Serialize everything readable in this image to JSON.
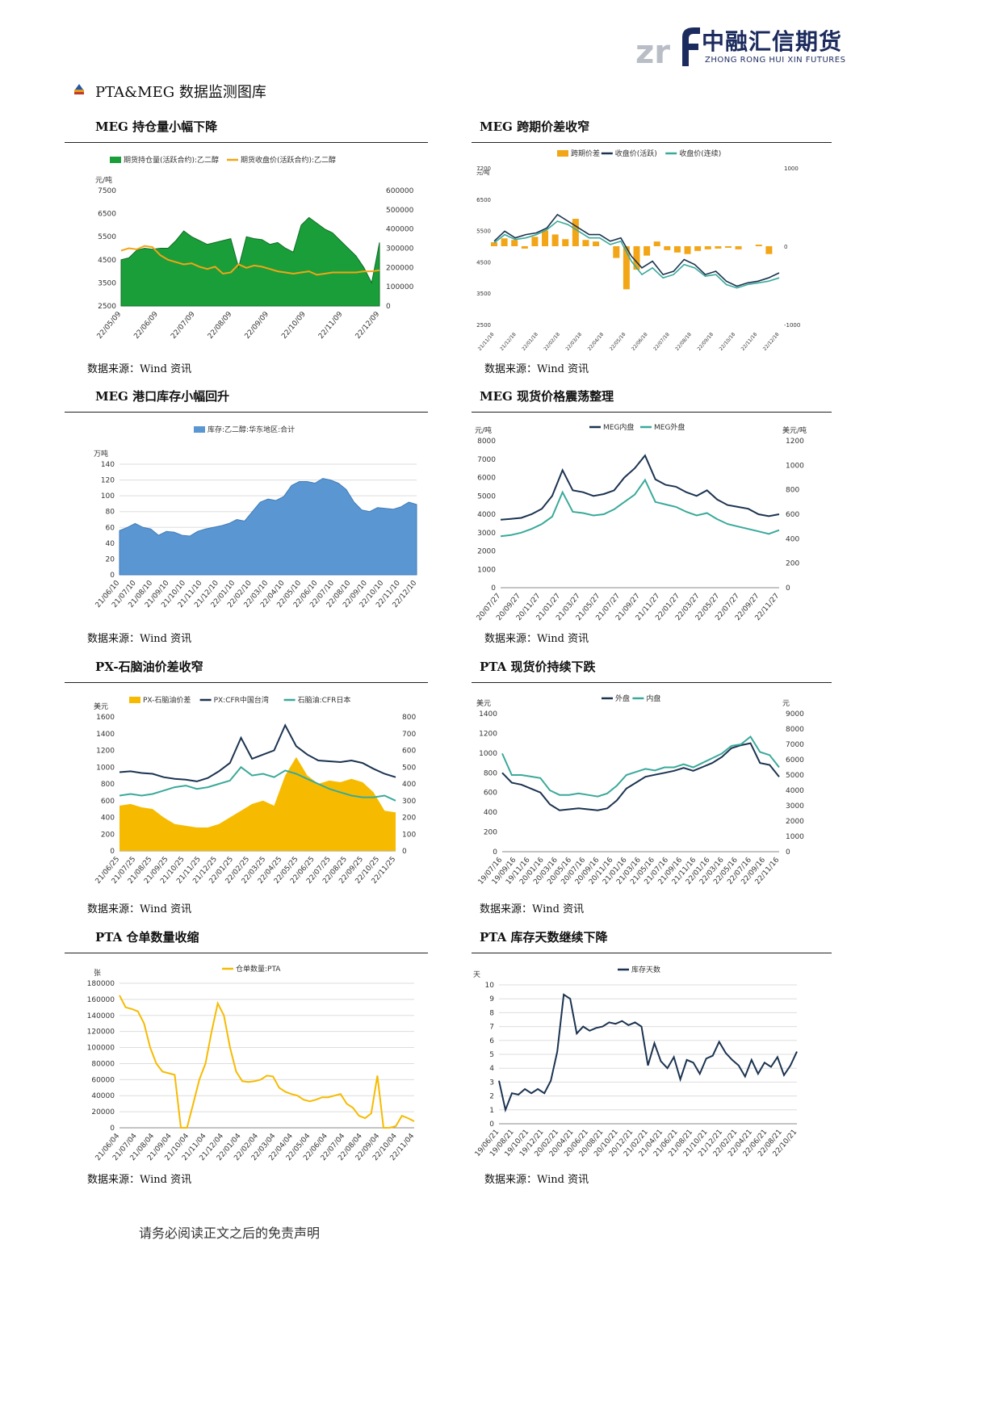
{
  "header": {
    "logo_cn": "中融汇信期货",
    "logo_en": "ZHONG RONG HUI XIN FUTURES",
    "section_title": "PTA&MEG 数据监测图库"
  },
  "charts": [
    {
      "title": "MEG 持仓量小幅下降",
      "source": "数据来源：Wind 资讯"
    },
    {
      "title": "MEG 跨期价差收窄",
      "source": "数据来源：Wind 资讯"
    },
    {
      "title": "MEG 港口库存小幅回升",
      "source": "数据来源：Wind 资讯"
    },
    {
      "title": "MEG 现货价格震荡整理",
      "source": "数据来源：Wind 资讯"
    },
    {
      "title": "PX-石脑油价差收窄",
      "source": "数据来源：Wind 资讯"
    },
    {
      "title": "PTA 现货价持续下跌",
      "source": "数据来源：Wind 资讯"
    },
    {
      "title": "PTA 仓单数量收缩",
      "source": "数据来源：Wind 资讯"
    },
    {
      "title": "PTA 库存天数继续下降",
      "source": "数据来源：Wind 资讯"
    }
  ],
  "footer": {
    "text": "请务必阅读正文之后的免责声明"
  },
  "colors": {
    "green": "#1a9e3a",
    "orange": "#f2a516",
    "navy": "#1b3350",
    "teal": "#3aa99a",
    "blue": "#5a97d2",
    "gold": "#f6bb00"
  },
  "chart_data": [
    {
      "type": "area",
      "legend": [
        "期货持仓量(活跃合约):乙二醇",
        "期货收盘价(活跃合约):乙二醇"
      ],
      "ylabel": "元/吨",
      "y_ticks": [
        "7500",
        "6500",
        "5500",
        "4500",
        "3500",
        "2500"
      ],
      "y2_ticks": [
        "600000",
        "500000",
        "400000",
        "300000",
        "200000",
        "100000",
        "0"
      ],
      "ylim": [
        2500,
        7500
      ],
      "y2lim": [
        0,
        600000
      ],
      "x_ticks": [
        "22/05/09",
        "22/06/09",
        "22/07/09",
        "22/08/09",
        "22/09/09",
        "22/10/09",
        "22/11/09",
        "22/12/09"
      ],
      "series": [
        {
          "name": "期货持仓量(活跃合约):乙二醇",
          "axis": "right",
          "values": [
            240000,
            250000,
            290000,
            300000,
            295000,
            300000,
            300000,
            340000,
            390000,
            360000,
            340000,
            320000,
            330000,
            340000,
            350000,
            200000,
            360000,
            350000,
            345000,
            320000,
            330000,
            300000,
            280000,
            420000,
            460000,
            430000,
            400000,
            380000,
            340000,
            300000,
            260000,
            200000,
            120000,
            330000
          ]
        },
        {
          "name": "期货收盘价(活跃合约):乙二醇",
          "axis": "left",
          "values": [
            4900,
            5000,
            4950,
            5100,
            5050,
            4700,
            4500,
            4400,
            4300,
            4350,
            4200,
            4100,
            4200,
            3900,
            3950,
            4300,
            4150,
            4250,
            4200,
            4100,
            4000,
            3950,
            3900,
            3950,
            4000,
            3850,
            3900,
            3950,
            3950,
            3950,
            3950,
            4000,
            4000,
            4050
          ]
        }
      ]
    },
    {
      "type": "line",
      "legend": [
        "跨期价差",
        "收盘价(活跃)",
        "收盘价(连续)"
      ],
      "ylabel": "元/吨",
      "y_ticks": [
        "7200",
        "6500",
        "5500",
        "4500",
        "3500",
        "2500"
      ],
      "y2_ticks": [
        "1000",
        "0",
        "-1000"
      ],
      "x_ticks": [
        "21/11/18",
        "21/12/18",
        "22/01/18",
        "22/02/18",
        "22/03/18",
        "22/04/18",
        "22/05/18",
        "22/06/18",
        "22/07/18",
        "22/08/18",
        "22/09/18",
        "22/10/18",
        "22/11/18",
        "22/12/18"
      ],
      "series": [
        {
          "name": "跨期价差",
          "axis": "right",
          "values": [
            50,
            100,
            80,
            -30,
            120,
            200,
            150,
            90,
            350,
            80,
            60,
            0,
            -150,
            -550,
            -300,
            -120,
            60,
            -50,
            -80,
            -100,
            -60,
            -40,
            -30,
            -20,
            -40,
            0,
            20,
            -100,
            0
          ]
        },
        {
          "name": "收盘价(活跃)",
          "axis": "left",
          "values": [
            5000,
            5300,
            5100,
            5200,
            5250,
            5400,
            5800,
            5600,
            5400,
            5200,
            5200,
            5000,
            5100,
            4550,
            4200,
            4400,
            4000,
            4100,
            4450,
            4300,
            4000,
            4100,
            3800,
            3650,
            3750,
            3800,
            3900,
            4050
          ]
        },
        {
          "name": "收盘价(连续)",
          "axis": "left",
          "values": [
            4950,
            5200,
            5050,
            5100,
            5200,
            5350,
            5600,
            5500,
            5300,
            5100,
            5100,
            4900,
            5000,
            4400,
            4000,
            4200,
            3900,
            4000,
            4300,
            4200,
            3950,
            4000,
            3700,
            3600,
            3700,
            3750,
            3800,
            3900
          ]
        }
      ]
    },
    {
      "type": "area",
      "legend": [
        "库存:乙二醇:华东地区:合计"
      ],
      "ylabel": "万吨",
      "y_ticks": [
        "140",
        "120",
        "100",
        "80",
        "60",
        "40",
        "20",
        "0"
      ],
      "ylim": [
        0,
        140
      ],
      "x_ticks": [
        "21/06/10",
        "21/07/10",
        "21/08/10",
        "21/09/10",
        "21/10/10",
        "21/11/10",
        "21/12/10",
        "22/01/10",
        "22/02/10",
        "22/03/10",
        "22/04/10",
        "22/05/10",
        "22/06/10",
        "22/07/10",
        "22/08/10",
        "22/09/10",
        "22/10/10",
        "22/11/10",
        "22/12/10"
      ],
      "series": [
        {
          "name": "库存:乙二醇:华东地区:合计",
          "values": [
            56,
            60,
            65,
            60,
            58,
            50,
            55,
            54,
            50,
            49,
            55,
            58,
            60,
            62,
            65,
            70,
            68,
            80,
            92,
            96,
            94,
            99,
            113,
            118,
            118,
            116,
            122,
            120,
            116,
            108,
            92,
            82,
            80,
            85,
            84,
            83,
            86,
            92,
            89
          ]
        }
      ]
    },
    {
      "type": "line",
      "legend": [
        "MEG内盘",
        "MEG外盘"
      ],
      "ylabel": "元/吨",
      "y2label": "美元/吨",
      "y_ticks": [
        "8000",
        "7000",
        "6000",
        "5000",
        "4000",
        "3000",
        "2000",
        "1000",
        "0"
      ],
      "y2_ticks": [
        "1200",
        "1000",
        "800",
        "600",
        "400",
        "200",
        "0"
      ],
      "x_ticks": [
        "20/07/27",
        "20/09/27",
        "20/11/27",
        "21/01/27",
        "21/03/27",
        "21/05/27",
        "21/07/27",
        "21/09/27",
        "21/11/27",
        "22/01/27",
        "22/03/27",
        "22/05/27",
        "22/07/27",
        "22/09/27",
        "22/11/27"
      ],
      "series": [
        {
          "name": "MEG内盘",
          "axis": "left",
          "values": [
            3700,
            3750,
            3800,
            4000,
            4300,
            5000,
            6400,
            5300,
            5200,
            5000,
            5100,
            5300,
            6000,
            6500,
            7200,
            5900,
            5600,
            5500,
            5200,
            5000,
            5300,
            4800,
            4500,
            4400,
            4300,
            4000,
            3900,
            4000
          ]
        },
        {
          "name": "MEG外盘",
          "axis": "right",
          "values": [
            420,
            430,
            450,
            480,
            520,
            580,
            780,
            620,
            610,
            590,
            600,
            640,
            700,
            760,
            880,
            700,
            680,
            660,
            620,
            590,
            610,
            560,
            520,
            500,
            480,
            460,
            440,
            470
          ]
        }
      ]
    },
    {
      "type": "bar",
      "legend": [
        "PX-石脑油价差",
        "PX:CFR中国台湾",
        "石脑油:CFR日本"
      ],
      "ylabel": "美元",
      "y_ticks": [
        "1600",
        "1400",
        "1200",
        "1000",
        "800",
        "600",
        "400",
        "200",
        "0"
      ],
      "y2_ticks": [
        "800",
        "700",
        "600",
        "500",
        "400",
        "300",
        "200",
        "100",
        "0"
      ],
      "x_ticks": [
        "21/06/25",
        "21/07/25",
        "21/08/25",
        "21/09/25",
        "21/10/25",
        "21/11/25",
        "21/12/25",
        "22/01/25",
        "22/02/25",
        "22/03/25",
        "22/04/25",
        "22/05/25",
        "22/06/25",
        "22/07/25",
        "22/08/25",
        "22/09/25",
        "22/10/25",
        "22/11/25"
      ],
      "series": [
        {
          "name": "PX-石脑油价差",
          "axis": "right",
          "values": [
            270,
            280,
            260,
            250,
            200,
            160,
            150,
            140,
            140,
            160,
            200,
            240,
            280,
            300,
            270,
            450,
            560,
            450,
            400,
            420,
            410,
            430,
            410,
            350,
            240,
            230
          ]
        },
        {
          "name": "PX:CFR中国台湾",
          "axis": "left",
          "values": [
            940,
            950,
            930,
            920,
            880,
            860,
            850,
            830,
            870,
            950,
            1050,
            1350,
            1100,
            1150,
            1200,
            1500,
            1250,
            1150,
            1080,
            1070,
            1060,
            1080,
            1050,
            980,
            920,
            880
          ]
        },
        {
          "name": "石脑油:CFR日本",
          "axis": "right",
          "values": [
            330,
            340,
            330,
            340,
            360,
            380,
            390,
            370,
            380,
            400,
            420,
            500,
            450,
            460,
            440,
            480,
            460,
            430,
            400,
            370,
            350,
            330,
            320,
            320,
            330,
            300
          ]
        }
      ]
    },
    {
      "type": "line",
      "legend": [
        "外盘",
        "内盘"
      ],
      "ylabel": "美元",
      "y2label": "元",
      "y_ticks": [
        "1400",
        "1200",
        "1000",
        "800",
        "600",
        "400",
        "200",
        "0"
      ],
      "y2_ticks": [
        "9000",
        "8000",
        "7000",
        "6000",
        "5000",
        "4000",
        "3000",
        "2000",
        "1000",
        "0"
      ],
      "x_ticks": [
        "19/07/16",
        "19/09/16",
        "19/11/16",
        "20/01/16",
        "20/03/16",
        "20/05/16",
        "20/07/16",
        "20/09/16",
        "20/11/16",
        "21/01/16",
        "21/03/16",
        "21/05/16",
        "21/07/16",
        "21/09/16",
        "21/11/16",
        "22/01/16",
        "22/03/16",
        "22/05/16",
        "22/07/16",
        "22/09/16",
        "22/11/16"
      ],
      "series": [
        {
          "name": "外盘",
          "axis": "left",
          "values": [
            800,
            700,
            680,
            640,
            600,
            480,
            420,
            430,
            440,
            430,
            420,
            440,
            520,
            640,
            700,
            760,
            780,
            800,
            820,
            850,
            820,
            860,
            900,
            960,
            1050,
            1080,
            1100,
            900,
            880,
            760
          ]
        },
        {
          "name": "内盘",
          "axis": "right",
          "values": [
            6400,
            5000,
            5000,
            4900,
            4800,
            4000,
            3700,
            3700,
            3800,
            3700,
            3600,
            3800,
            4300,
            5000,
            5200,
            5400,
            5300,
            5500,
            5500,
            5700,
            5500,
            5800,
            6100,
            6400,
            6900,
            7000,
            7500,
            6500,
            6300,
            5500
          ]
        }
      ]
    },
    {
      "type": "line",
      "legend": [
        "仓单数量:PTA"
      ],
      "ylabel": "张",
      "y_ticks": [
        "180000",
        "160000",
        "140000",
        "120000",
        "100000",
        "80000",
        "60000",
        "40000",
        "20000",
        "0"
      ],
      "ylim": [
        0,
        180000
      ],
      "x_ticks": [
        "21/06/04",
        "21/07/04",
        "21/08/04",
        "21/09/04",
        "21/10/04",
        "21/11/04",
        "21/12/04",
        "22/01/04",
        "22/02/04",
        "22/03/04",
        "22/04/04",
        "22/05/04",
        "22/06/04",
        "22/07/04",
        "22/08/04",
        "22/09/04",
        "22/10/04",
        "22/11/04"
      ],
      "series": [
        {
          "name": "仓单数量:PTA",
          "values": [
            165000,
            150000,
            148000,
            145000,
            130000,
            100000,
            80000,
            70000,
            68000,
            66000,
            0,
            0,
            30000,
            60000,
            80000,
            120000,
            155000,
            140000,
            100000,
            70000,
            58000,
            57000,
            58000,
            60000,
            65000,
            64000,
            50000,
            45000,
            42000,
            40000,
            35000,
            33000,
            35000,
            38000,
            38000,
            40000,
            42000,
            30000,
            25000,
            15000,
            12000,
            18000,
            65000,
            0,
            0,
            2000,
            15000,
            12000,
            8000
          ]
        }
      ]
    },
    {
      "type": "line",
      "legend": [
        "库存天数"
      ],
      "ylabel": "天",
      "y_ticks": [
        "10",
        "9",
        "8",
        "7",
        "6",
        "5",
        "4",
        "3",
        "2",
        "1",
        "0"
      ],
      "ylim": [
        0,
        10
      ],
      "x_ticks": [
        "19/06/21",
        "19/08/21",
        "19/10/21",
        "19/12/21",
        "20/02/21",
        "20/04/21",
        "20/06/21",
        "20/08/21",
        "20/10/21",
        "20/12/21",
        "21/02/21",
        "21/04/21",
        "21/06/21",
        "21/08/21",
        "21/10/21",
        "21/12/21",
        "22/02/21",
        "22/04/21",
        "22/06/21",
        "22/08/21",
        "22/10/21"
      ],
      "series": [
        {
          "name": "库存天数",
          "values": [
            3.1,
            1.0,
            2.2,
            2.1,
            2.5,
            2.2,
            2.5,
            2.2,
            3.1,
            5.2,
            9.3,
            9.0,
            6.5,
            7.0,
            6.7,
            6.9,
            7.0,
            7.3,
            7.2,
            7.4,
            7.1,
            7.3,
            7.0,
            4.2,
            5.8,
            4.5,
            4.0,
            4.8,
            3.2,
            4.6,
            4.4,
            3.6,
            4.7,
            4.9,
            5.9,
            5.1,
            4.6,
            4.2,
            3.4,
            4.6,
            3.6,
            4.4,
            4.1,
            4.8,
            3.5,
            4.2,
            5.2
          ]
        }
      ]
    }
  ]
}
